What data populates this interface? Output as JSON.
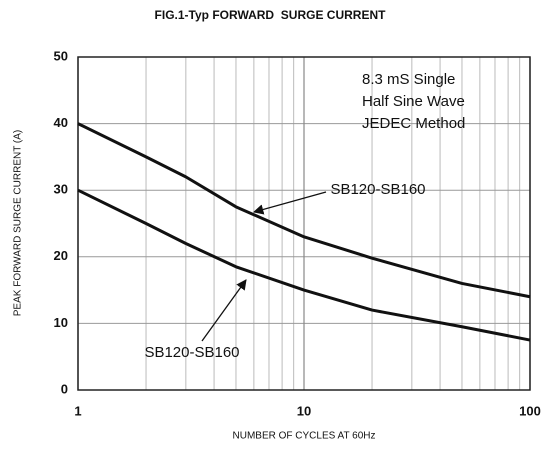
{
  "chart_data": {
    "type": "line",
    "title": "FIG.1-Typ FORWARD  SURGE CURRENT",
    "x_label": "NUMBER OF CYCLES AT 60Hz",
    "y_label": "PEAK FORWARD SURGE CURRENT (A)",
    "annotation": [
      "8.3 mS Single",
      "Half Sine Wave",
      "JEDEC Method"
    ],
    "x": [
      1,
      2,
      3,
      5,
      10,
      20,
      50,
      100
    ],
    "series": [
      {
        "name": "SB120-SB160",
        "color": "#111111",
        "values": [
          40,
          35,
          32,
          27.5,
          23,
          19.8,
          16,
          14
        ]
      },
      {
        "name": "SB120-SB160",
        "color": "#111111",
        "values": [
          30,
          25,
          22,
          18.5,
          15,
          12,
          9.5,
          7.5
        ]
      }
    ],
    "xlim": [
      1,
      100
    ],
    "xticks": [
      1,
      10,
      100
    ],
    "xscale": "log",
    "ylim": [
      0,
      50
    ],
    "yticks": [
      0,
      10,
      20,
      30,
      40,
      50
    ],
    "grid": true
  }
}
